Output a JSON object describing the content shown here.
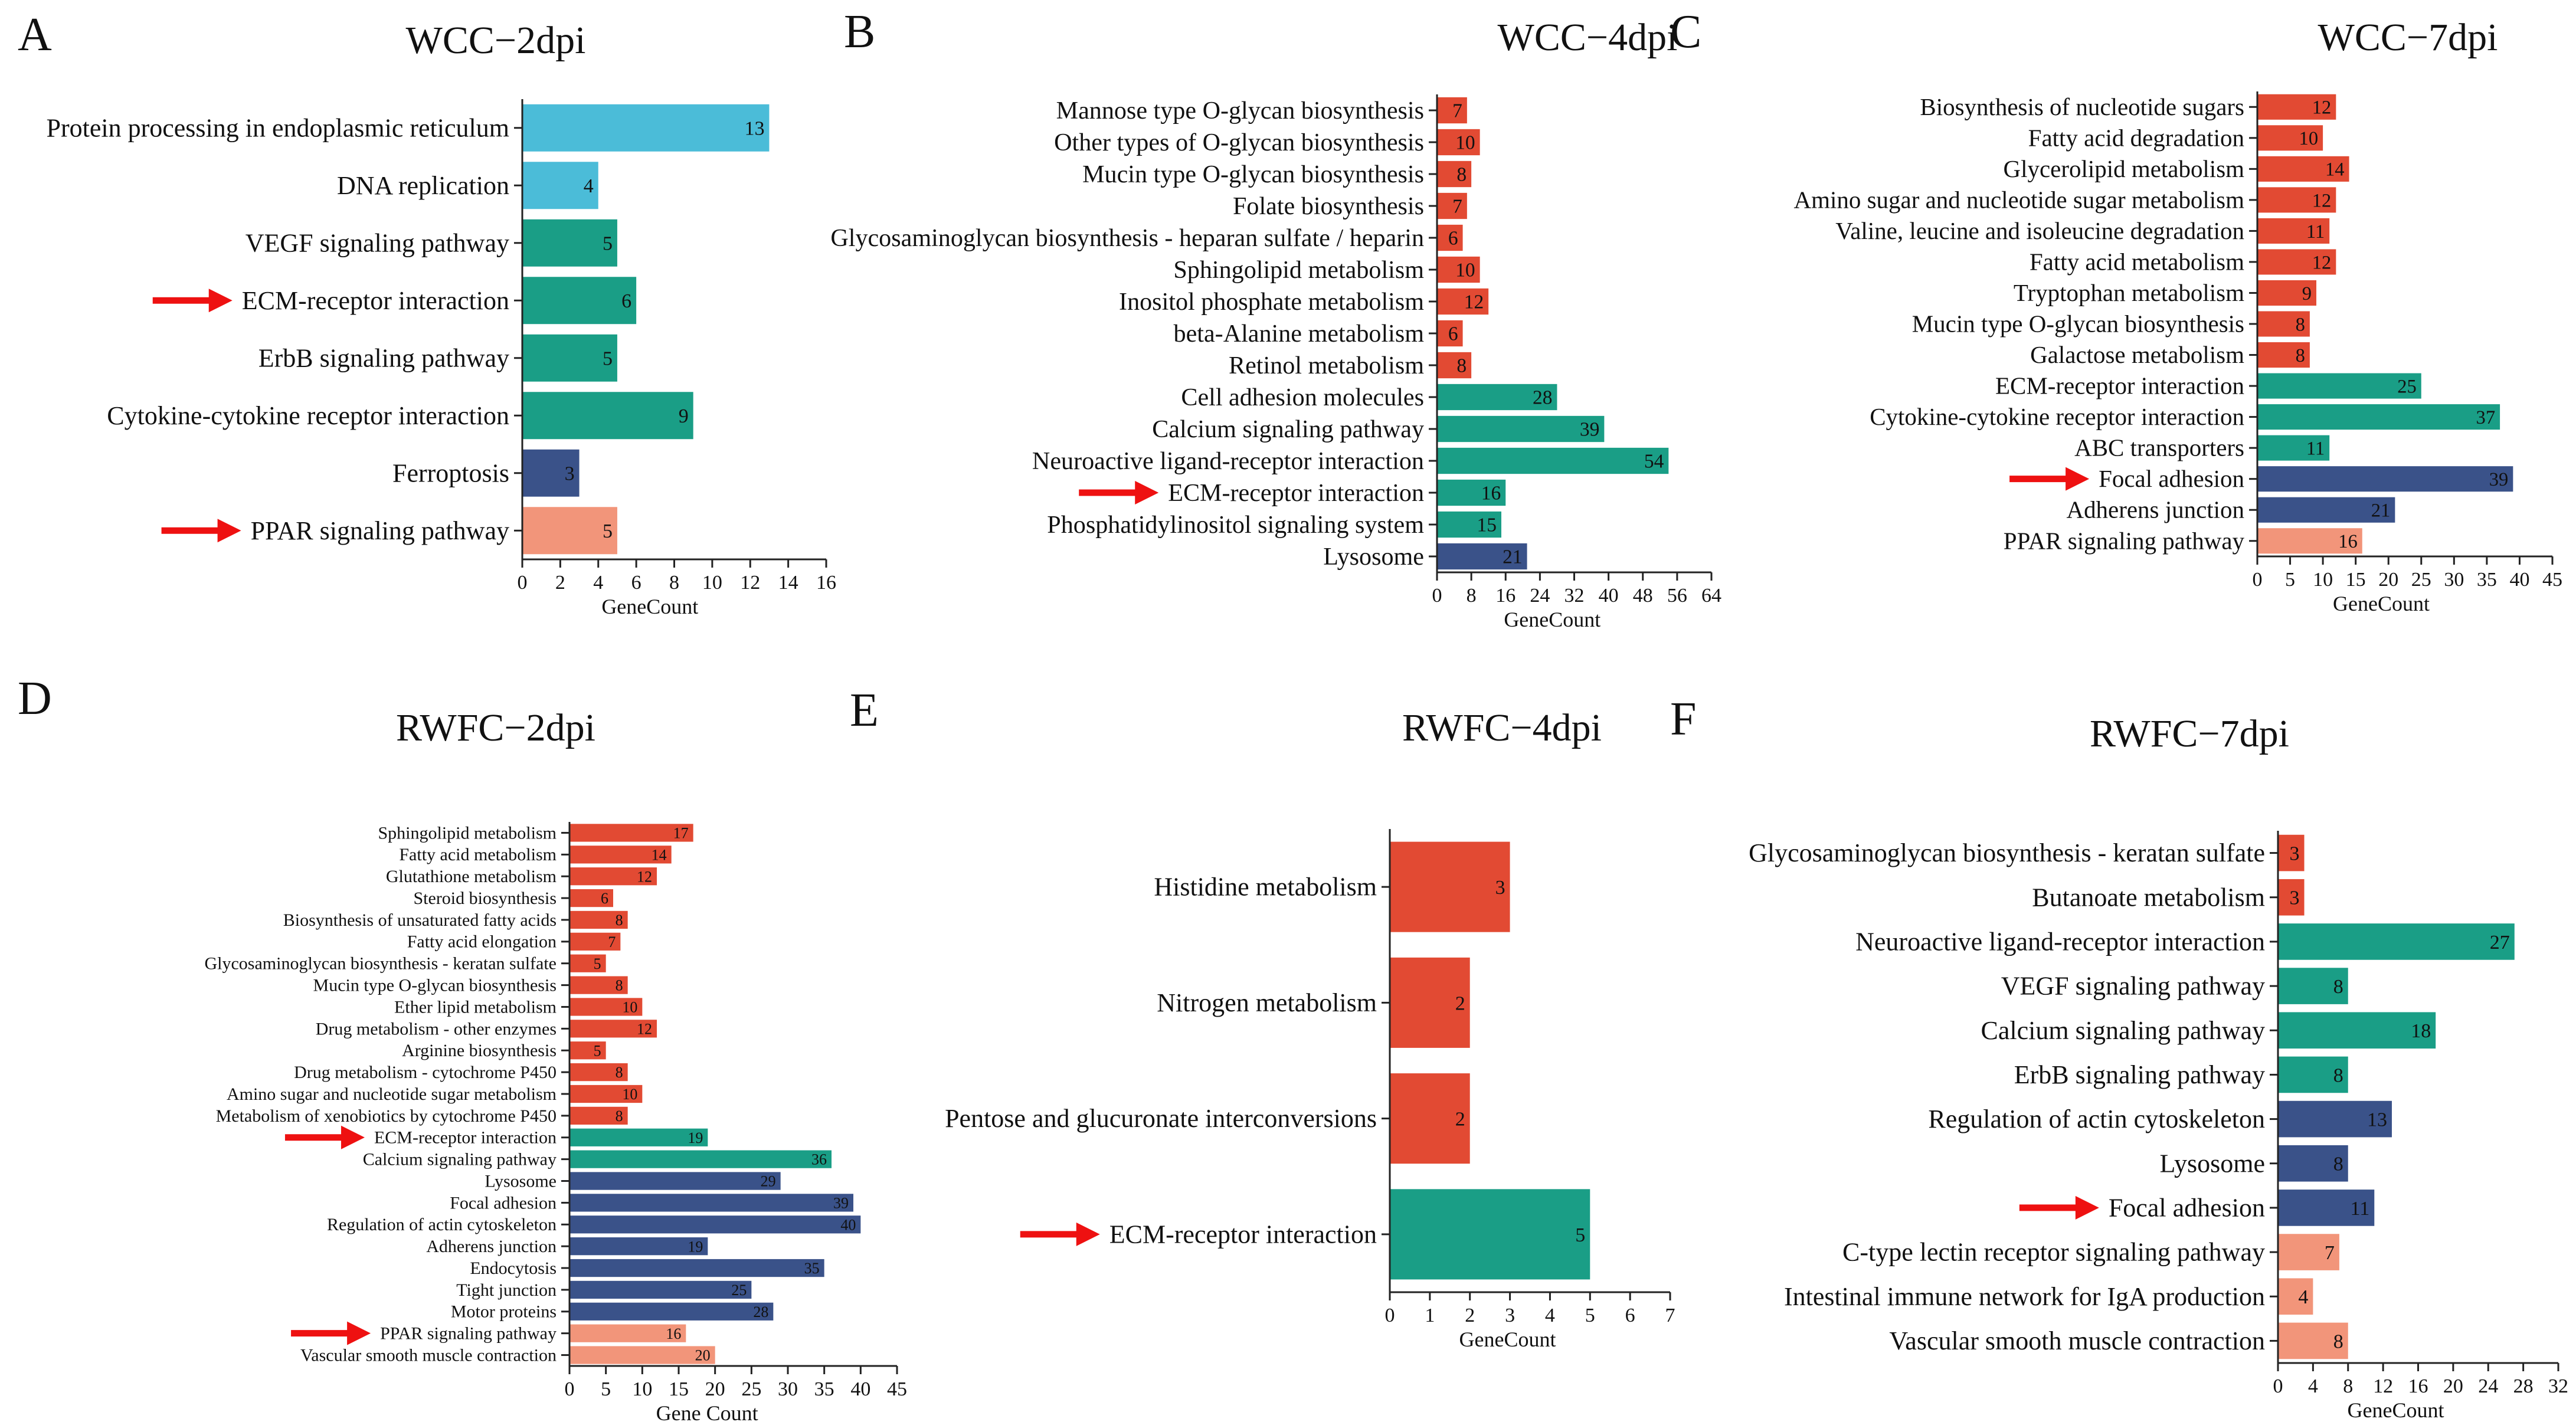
{
  "colors": {
    "red": "#E24A33",
    "teal": "#1A9E86",
    "navy": "#3A5289",
    "salmon": "#F2957A",
    "sky": "#4BBCD8",
    "arrow": "#EE1111"
  },
  "chart_data": [
    {
      "type": "bar",
      "orientation": "horizontal",
      "panel_letter": "A",
      "title": "WCC−2dpi",
      "xlabel": "GeneCount",
      "xlim": [
        0,
        16
      ],
      "ticks": [
        0,
        2,
        4,
        6,
        8,
        10,
        12,
        14,
        16
      ],
      "categories": [
        "Protein processing in endoplasmic reticulum",
        "DNA replication",
        "VEGF signaling pathway",
        "ECM-receptor interaction",
        "ErbB signaling pathway",
        "Cytokine-cytokine receptor interaction",
        "Ferroptosis",
        "PPAR signaling pathway"
      ],
      "values": [
        13,
        4,
        5,
        6,
        5,
        9,
        3,
        5
      ],
      "colors": [
        "sky",
        "sky",
        "teal",
        "teal",
        "teal",
        "teal",
        "navy",
        "salmon"
      ],
      "arrows": [
        false,
        false,
        false,
        true,
        false,
        false,
        false,
        true
      ]
    },
    {
      "type": "bar",
      "orientation": "horizontal",
      "panel_letter": "B",
      "title": "WCC−4dpi",
      "xlabel": "GeneCount",
      "xlim": [
        0,
        64
      ],
      "ticks": [
        0,
        8,
        16,
        24,
        32,
        40,
        48,
        56,
        64
      ],
      "categories": [
        "Mannose type O-glycan biosynthesis",
        "Other types of O-glycan biosynthesis",
        "Mucin type O-glycan biosynthesis",
        "Folate biosynthesis",
        "Glycosaminoglycan biosynthesis - heparan sulfate / heparin",
        "Sphingolipid metabolism",
        "Inositol phosphate metabolism",
        "beta-Alanine metabolism",
        "Retinol metabolism",
        "Cell adhesion molecules",
        "Calcium signaling pathway",
        "Neuroactive ligand-receptor interaction",
        "ECM-receptor interaction",
        "Phosphatidylinositol signaling system",
        "Lysosome"
      ],
      "values": [
        7,
        10,
        8,
        7,
        6,
        10,
        12,
        6,
        8,
        28,
        39,
        54,
        16,
        15,
        21
      ],
      "colors": [
        "red",
        "red",
        "red",
        "red",
        "red",
        "red",
        "red",
        "red",
        "red",
        "teal",
        "teal",
        "teal",
        "teal",
        "teal",
        "navy"
      ],
      "arrows": [
        false,
        false,
        false,
        false,
        false,
        false,
        false,
        false,
        false,
        false,
        false,
        false,
        true,
        false,
        false
      ]
    },
    {
      "type": "bar",
      "orientation": "horizontal",
      "panel_letter": "C",
      "title": "WCC−7dpi",
      "xlabel": "GeneCount",
      "xlim": [
        0,
        45
      ],
      "ticks": [
        0,
        5,
        10,
        15,
        20,
        25,
        30,
        35,
        40,
        45
      ],
      "categories": [
        "Biosynthesis of nucleotide sugars",
        "Fatty acid degradation",
        "Glycerolipid metabolism",
        "Amino sugar and nucleotide sugar metabolism",
        "Valine, leucine and isoleucine degradation",
        "Fatty acid metabolism",
        "Tryptophan metabolism",
        "Mucin type O-glycan biosynthesis",
        "Galactose metabolism",
        "ECM-receptor interaction",
        "Cytokine-cytokine receptor interaction",
        "ABC transporters",
        "Focal adhesion",
        "Adherens junction",
        "PPAR signaling pathway"
      ],
      "values": [
        12,
        10,
        14,
        12,
        11,
        12,
        9,
        8,
        8,
        25,
        37,
        11,
        39,
        21,
        16
      ],
      "colors": [
        "red",
        "red",
        "red",
        "red",
        "red",
        "red",
        "red",
        "red",
        "red",
        "teal",
        "teal",
        "teal",
        "navy",
        "navy",
        "salmon"
      ],
      "arrows": [
        false,
        false,
        false,
        false,
        false,
        false,
        false,
        false,
        false,
        false,
        false,
        false,
        true,
        false,
        false
      ]
    },
    {
      "type": "bar",
      "orientation": "horizontal",
      "panel_letter": "D",
      "title": "RWFC−2dpi",
      "xlabel": "Gene Count",
      "xlim": [
        0,
        45
      ],
      "ticks": [
        0,
        5,
        10,
        15,
        20,
        25,
        30,
        35,
        40,
        45
      ],
      "categories": [
        "Sphingolipid metabolism",
        "Fatty acid metabolism",
        "Glutathione metabolism",
        "Steroid biosynthesis",
        "Biosynthesis of unsaturated fatty acids",
        "Fatty acid elongation",
        "Glycosaminoglycan biosynthesis - keratan sulfate",
        "Mucin type O-glycan biosynthesis",
        "Ether lipid metabolism",
        "Drug metabolism - other enzymes",
        "Arginine biosynthesis",
        "Drug metabolism - cytochrome P450",
        "Amino sugar and nucleotide sugar metabolism",
        "Metabolism of xenobiotics by cytochrome P450",
        "ECM-receptor interaction",
        "Calcium signaling pathway",
        "Lysosome",
        "Focal adhesion",
        "Regulation of actin cytoskeleton",
        "Adherens junction",
        "Endocytosis",
        "Tight junction",
        "Motor proteins",
        "PPAR signaling pathway",
        "Vascular smooth muscle contraction"
      ],
      "values": [
        17,
        14,
        12,
        6,
        8,
        7,
        5,
        8,
        10,
        12,
        5,
        8,
        10,
        8,
        19,
        36,
        29,
        39,
        40,
        19,
        35,
        25,
        28,
        16,
        20
      ],
      "colors": [
        "red",
        "red",
        "red",
        "red",
        "red",
        "red",
        "red",
        "red",
        "red",
        "red",
        "red",
        "red",
        "red",
        "red",
        "teal",
        "teal",
        "navy",
        "navy",
        "navy",
        "navy",
        "navy",
        "navy",
        "navy",
        "salmon",
        "salmon"
      ],
      "arrows": [
        false,
        false,
        false,
        false,
        false,
        false,
        false,
        false,
        false,
        false,
        false,
        false,
        false,
        false,
        true,
        false,
        false,
        false,
        false,
        false,
        false,
        false,
        false,
        true,
        false
      ]
    },
    {
      "type": "bar",
      "orientation": "horizontal",
      "panel_letter": "E",
      "title": "RWFC−4dpi",
      "xlabel": "GeneCount",
      "xlim": [
        0,
        7
      ],
      "ticks": [
        0,
        1,
        2,
        3,
        4,
        5,
        6,
        7
      ],
      "categories": [
        "Histidine metabolism",
        "Nitrogen metabolism",
        "Pentose and glucuronate interconversions",
        "ECM-receptor interaction"
      ],
      "values": [
        3,
        2,
        2,
        5
      ],
      "colors": [
        "red",
        "red",
        "red",
        "teal"
      ],
      "arrows": [
        false,
        false,
        false,
        true
      ]
    },
    {
      "type": "bar",
      "orientation": "horizontal",
      "panel_letter": "F",
      "title": "RWFC−7dpi",
      "xlabel": "GeneCount",
      "xlim": [
        0,
        32
      ],
      "ticks": [
        0,
        4,
        8,
        12,
        16,
        20,
        24,
        28,
        32
      ],
      "categories": [
        "Glycosaminoglycan biosynthesis - keratan sulfate",
        "Butanoate metabolism",
        "Neuroactive ligand-receptor interaction",
        "VEGF signaling pathway",
        "Calcium signaling pathway",
        "ErbB signaling pathway",
        "Regulation of actin cytoskeleton",
        "Lysosome",
        "Focal adhesion",
        "C-type lectin receptor signaling pathway",
        "Intestinal immune network for IgA production",
        "Vascular smooth muscle contraction"
      ],
      "values": [
        3,
        3,
        27,
        8,
        18,
        8,
        13,
        8,
        11,
        7,
        4,
        8
      ],
      "colors": [
        "red",
        "red",
        "teal",
        "teal",
        "teal",
        "teal",
        "navy",
        "navy",
        "navy",
        "salmon",
        "salmon",
        "salmon"
      ],
      "arrows": [
        false,
        false,
        false,
        false,
        false,
        false,
        false,
        false,
        true,
        false,
        false,
        false
      ]
    }
  ]
}
